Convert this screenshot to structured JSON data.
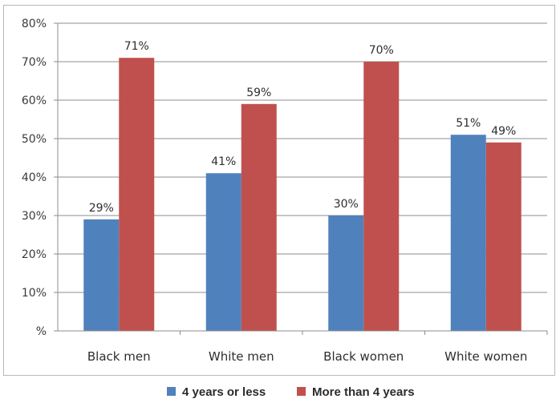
{
  "chart_data": {
    "type": "bar",
    "categories": [
      "Black men",
      "White men",
      "Black women",
      "White women"
    ],
    "series": [
      {
        "name": "4 years or less",
        "color": "#4f81bd",
        "values": [
          29,
          41,
          30,
          51
        ],
        "labels": [
          "29%",
          "41%",
          "30%",
          "51%"
        ]
      },
      {
        "name": "More than 4 years",
        "color": "#c0504d",
        "values": [
          71,
          59,
          70,
          49
        ],
        "labels": [
          "71%",
          "59%",
          "70%",
          "49%"
        ]
      }
    ],
    "yticks": [
      {
        "value": 0,
        "label": "%"
      },
      {
        "value": 10,
        "label": "10%"
      },
      {
        "value": 20,
        "label": "20%"
      },
      {
        "value": 30,
        "label": "30%"
      },
      {
        "value": 40,
        "label": "40%"
      },
      {
        "value": 50,
        "label": "50%"
      },
      {
        "value": 60,
        "label": "60%"
      },
      {
        "value": 70,
        "label": "70%"
      },
      {
        "value": 80,
        "label": "80%"
      }
    ],
    "ylim": [
      0,
      80
    ],
    "grid": true,
    "legend_position": "bottom",
    "title": "",
    "xlabel": "",
    "ylabel": ""
  }
}
